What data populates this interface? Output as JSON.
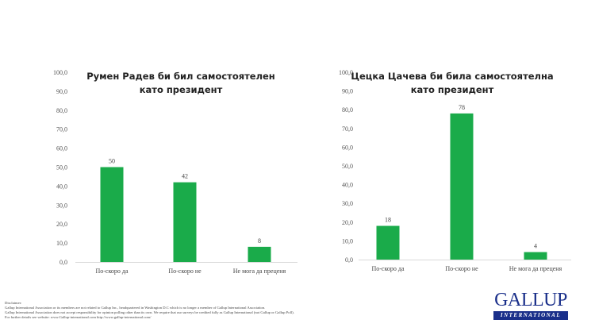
{
  "chart_data": [
    {
      "type": "bar",
      "title": [
        "Румен Радев би бил самостоятелен",
        "като президент"
      ],
      "categories": [
        "По-скоро да",
        "По-скоро не",
        "Не мога да преценя"
      ],
      "values": [
        50,
        42,
        8
      ],
      "ylim": [
        0,
        100
      ],
      "yticks": [
        "0,0",
        "10,0",
        "20,0",
        "30,0",
        "40,0",
        "50,0",
        "60,0",
        "70,0",
        "80,0",
        "90,0",
        "100,0"
      ],
      "grid": false,
      "bar_color": "#1aab4a"
    },
    {
      "type": "bar",
      "title": [
        "Цецка Цачева би била самостоятелна",
        "като президент"
      ],
      "categories": [
        "По-скоро да",
        "По-скоро не",
        "Не мога да преценя"
      ],
      "values": [
        18,
        78,
        4
      ],
      "ylim": [
        0,
        100
      ],
      "yticks": [
        "0,0",
        "10,0",
        "20,0",
        "30,0",
        "40,0",
        "50,0",
        "60,0",
        "70,0",
        "80,0",
        "90,0",
        "100,0"
      ],
      "grid": false,
      "bar_color": "#1aab4a"
    }
  ],
  "disclaimer": {
    "heading": "Disclaimer:",
    "lines": [
      "Gallup International Association or its members are not related to Gallup Inc., headquartered in Washington D.C which is no longer a member of Gallup International Association.",
      "Gallup International Association does not accept responsibility for opinion polling other than its own. We require that our surveys be credited fully as Gallup International (not Gallup or Gallup Poll).",
      "For further details see website: www.Gallup-international.com http://www.gallup-international.com/"
    ]
  },
  "logo": {
    "name": "GALLUP",
    "sub": "INTERNATIONAL",
    "color": "#1a2f8a"
  }
}
